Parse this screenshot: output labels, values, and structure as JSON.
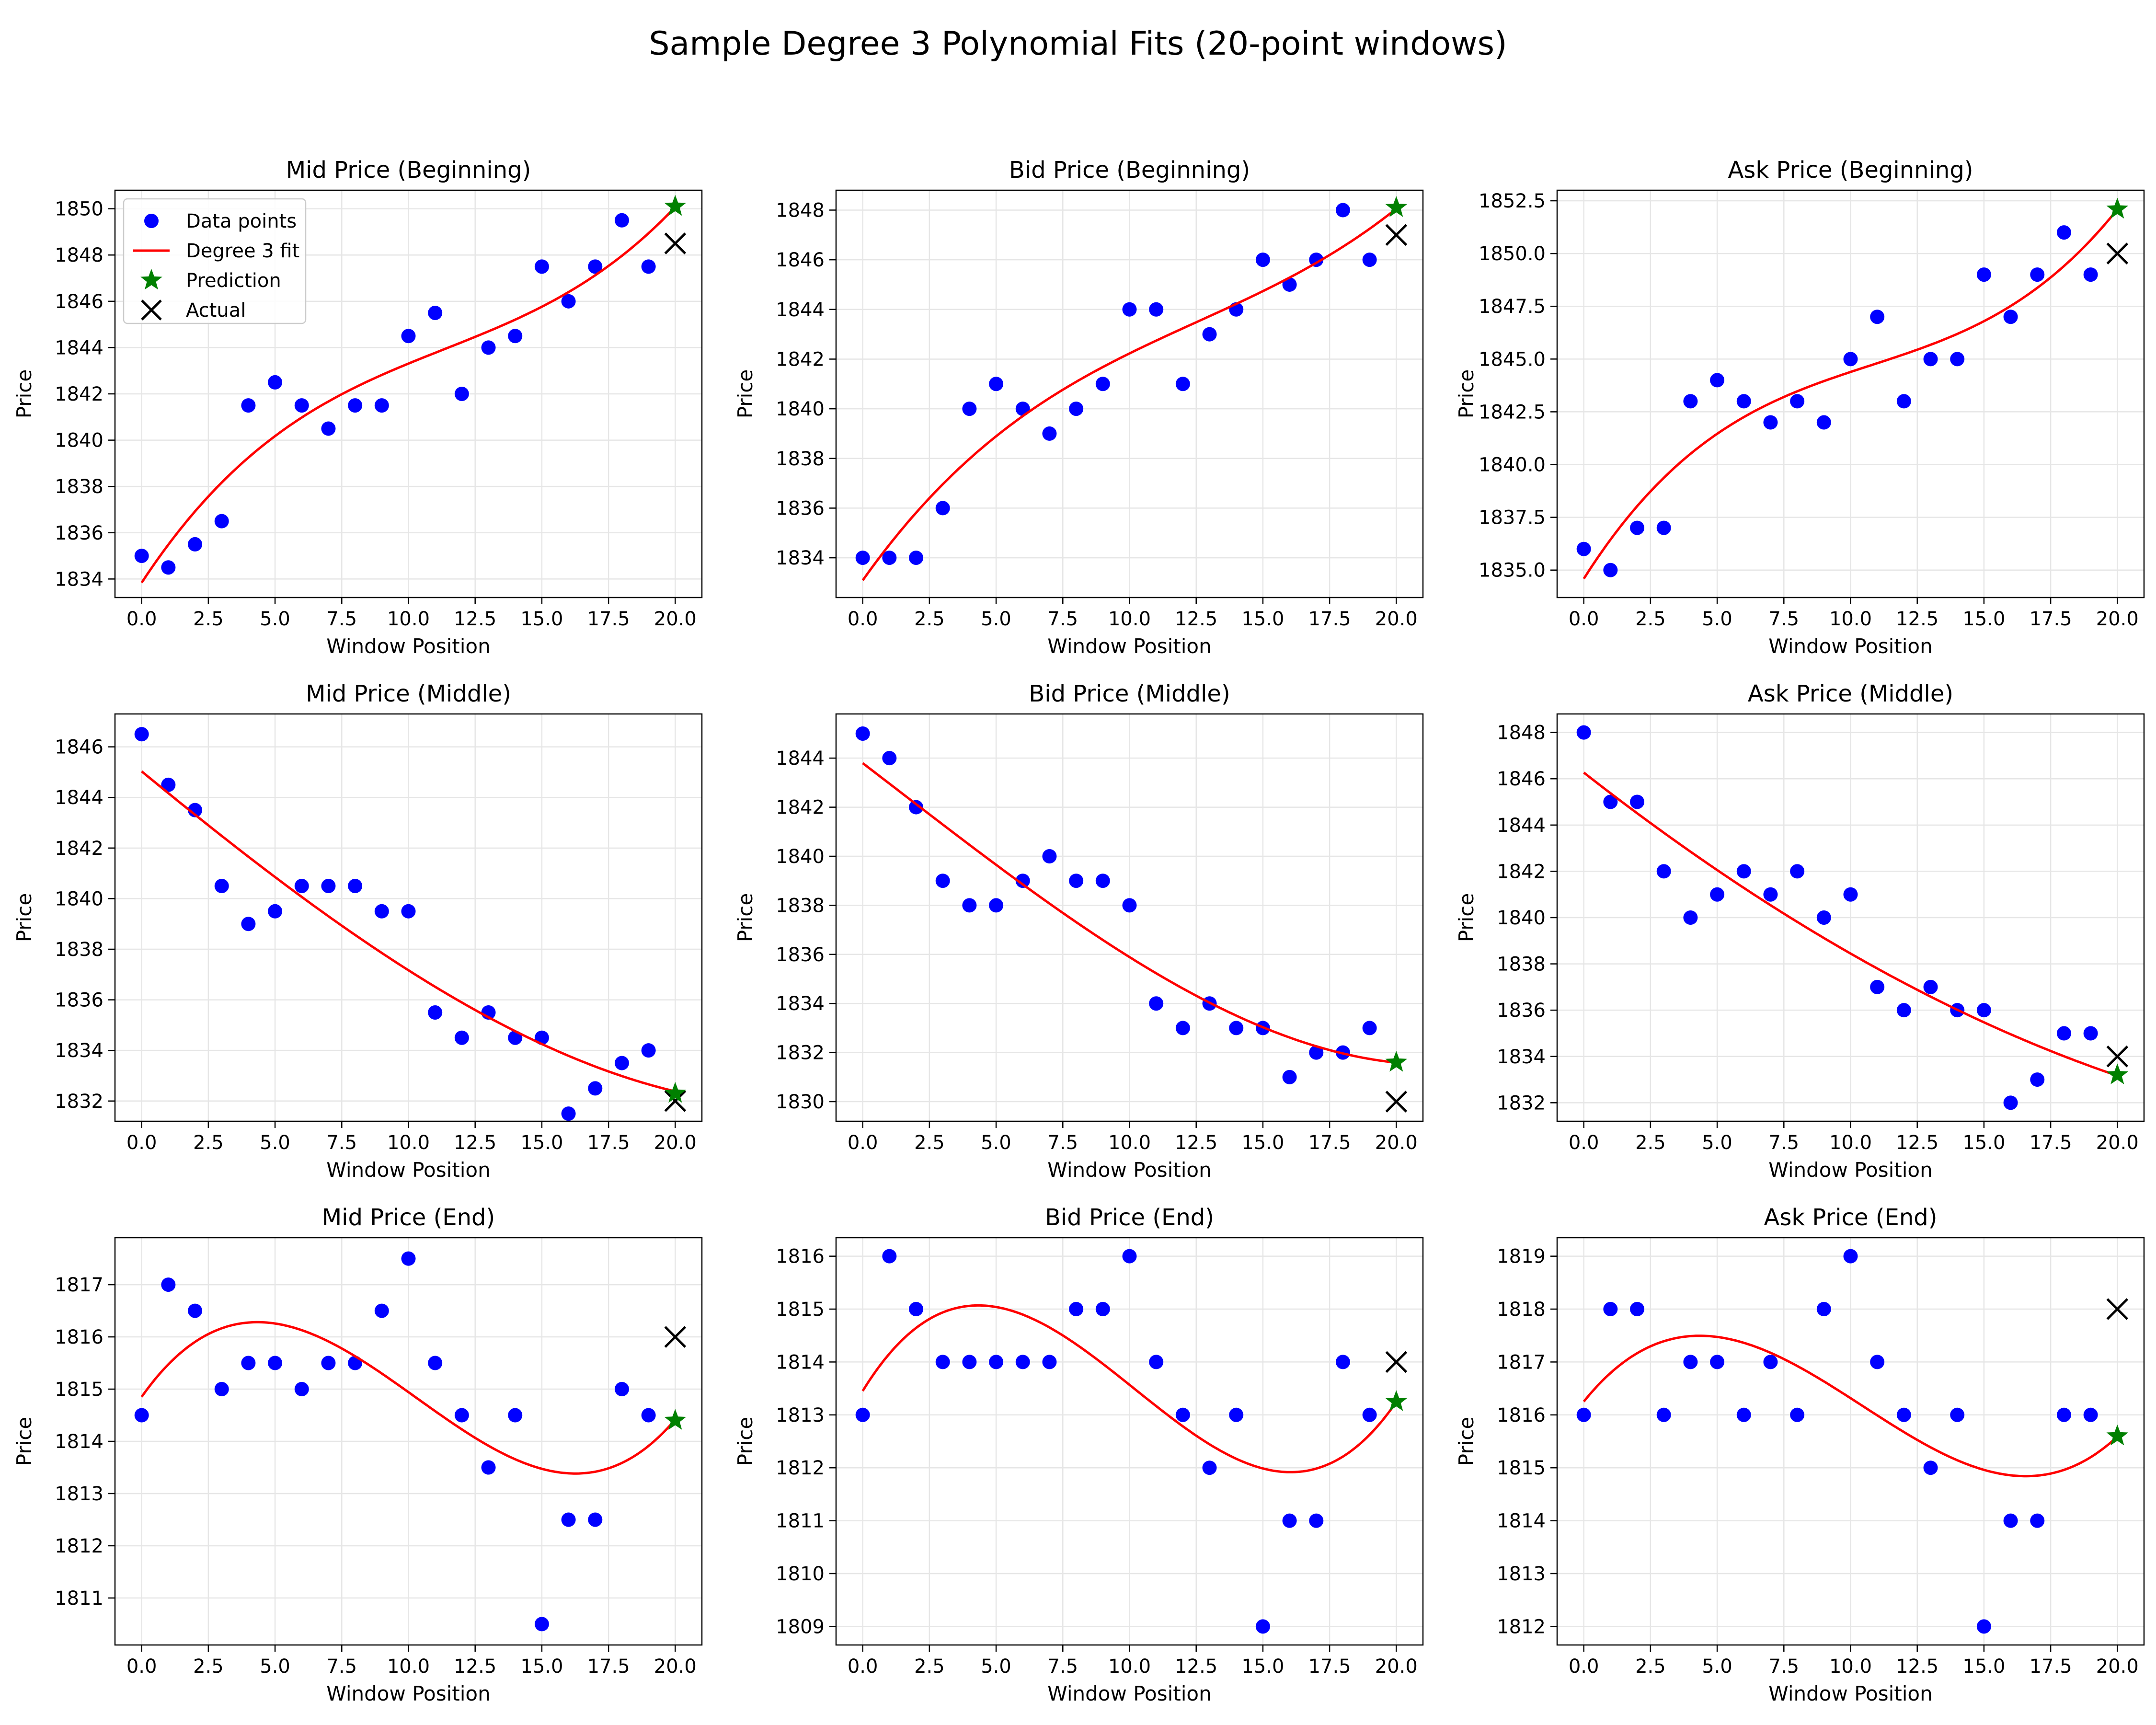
{
  "figure": {
    "title": "Sample Degree 3 Polynomial Fits (20-point windows)"
  },
  "legend_labels": {
    "data": "Data points",
    "fit": "Degree 3 fit",
    "pred": "Prediction",
    "actual": "Actual"
  },
  "colors": {
    "data": "#0000ff",
    "fit": "#ff0000",
    "pred": "#008000",
    "actual": "#000000",
    "grid": "#e6e6e6"
  },
  "chart_data": [
    {
      "type": "scatter",
      "title": "Mid Price (Beginning)",
      "xlabel": "Window Position",
      "ylabel": "Price",
      "xlim": [
        -1,
        21
      ],
      "ylim": [
        1833.2,
        1850.8
      ],
      "xticks": [
        0,
        2.5,
        5,
        7.5,
        10,
        12.5,
        15,
        17.5,
        20
      ],
      "xtick_labels": [
        "0.0",
        "2.5",
        "5.0",
        "7.5",
        "10.0",
        "12.5",
        "15.0",
        "17.5",
        "20.0"
      ],
      "yticks": [
        1834,
        1836,
        1838,
        1840,
        1842,
        1844,
        1846,
        1848,
        1850
      ],
      "ytick_labels": [
        "1834",
        "1836",
        "1838",
        "1840",
        "1842",
        "1844",
        "1846",
        "1848",
        "1850"
      ],
      "x": [
        0,
        1,
        2,
        3,
        4,
        5,
        6,
        7,
        8,
        9,
        10,
        11,
        12,
        13,
        14,
        15,
        16,
        17,
        18,
        19
      ],
      "y": [
        1835,
        1834.5,
        1835.5,
        1836.5,
        1841.5,
        1842.5,
        1841.5,
        1840.5,
        1841.5,
        1841.5,
        1844.5,
        1845.5,
        1842,
        1844,
        1844.5,
        1847.5,
        1846,
        1847.5,
        1849.5,
        1847.5
      ],
      "fit": {
        "degree": 3,
        "x_range": [
          0,
          20
        ]
      },
      "prediction": {
        "x": 20,
        "y": 1850.1
      },
      "actual": {
        "x": 20,
        "y": 1848.5
      },
      "legend": "upper-left",
      "grid": true
    },
    {
      "type": "scatter",
      "title": "Bid Price (Beginning)",
      "xlabel": "Window Position",
      "ylabel": "Price",
      "xlim": [
        -1,
        21
      ],
      "ylim": [
        1832.4,
        1848.8
      ],
      "xticks": [
        0,
        2.5,
        5,
        7.5,
        10,
        12.5,
        15,
        17.5,
        20
      ],
      "xtick_labels": [
        "0.0",
        "2.5",
        "5.0",
        "7.5",
        "10.0",
        "12.5",
        "15.0",
        "17.5",
        "20.0"
      ],
      "yticks": [
        1834,
        1836,
        1838,
        1840,
        1842,
        1844,
        1846,
        1848
      ],
      "ytick_labels": [
        "1834",
        "1836",
        "1838",
        "1840",
        "1842",
        "1844",
        "1846",
        "1848"
      ],
      "x": [
        0,
        1,
        2,
        3,
        4,
        5,
        6,
        7,
        8,
        9,
        10,
        11,
        12,
        13,
        14,
        15,
        16,
        17,
        18,
        19
      ],
      "y": [
        1834,
        1834,
        1834,
        1836,
        1840,
        1841,
        1840,
        1839,
        1840,
        1841,
        1844,
        1844,
        1841,
        1843,
        1844,
        1846,
        1845,
        1846,
        1848,
        1846
      ],
      "fit": {
        "degree": 3,
        "x_range": [
          0,
          20
        ]
      },
      "prediction": {
        "x": 20,
        "y": 1848.1
      },
      "actual": {
        "x": 20,
        "y": 1847
      },
      "grid": true
    },
    {
      "type": "scatter",
      "title": "Ask Price (Beginning)",
      "xlabel": "Window Position",
      "ylabel": "Price",
      "xlim": [
        -1,
        21
      ],
      "ylim": [
        1833.7,
        1853.0
      ],
      "xticks": [
        0,
        2.5,
        5,
        7.5,
        10,
        12.5,
        15,
        17.5,
        20
      ],
      "xtick_labels": [
        "0.0",
        "2.5",
        "5.0",
        "7.5",
        "10.0",
        "12.5",
        "15.0",
        "17.5",
        "20.0"
      ],
      "yticks": [
        1835,
        1837.5,
        1840,
        1842.5,
        1845,
        1847.5,
        1850,
        1852.5
      ],
      "ytick_labels": [
        "1835.0",
        "1837.5",
        "1840.0",
        "1842.5",
        "1845.0",
        "1847.5",
        "1850.0",
        "1852.5"
      ],
      "x": [
        0,
        1,
        2,
        3,
        4,
        5,
        6,
        7,
        8,
        9,
        10,
        11,
        12,
        13,
        14,
        15,
        16,
        17,
        18,
        19
      ],
      "y": [
        1836,
        1835,
        1837,
        1837,
        1843,
        1844,
        1843,
        1842,
        1843,
        1842,
        1845,
        1847,
        1843,
        1845,
        1845,
        1849,
        1847,
        1849,
        1851,
        1849
      ],
      "fit": {
        "degree": 3,
        "x_range": [
          0,
          20
        ]
      },
      "prediction": {
        "x": 20,
        "y": 1852.1
      },
      "actual": {
        "x": 20,
        "y": 1850
      },
      "grid": true
    },
    {
      "type": "scatter",
      "title": "Mid Price (Middle)",
      "xlabel": "Window Position",
      "ylabel": "Price",
      "xlim": [
        -1,
        21
      ],
      "ylim": [
        1831.2,
        1847.3
      ],
      "xticks": [
        0,
        2.5,
        5,
        7.5,
        10,
        12.5,
        15,
        17.5,
        20
      ],
      "xtick_labels": [
        "0.0",
        "2.5",
        "5.0",
        "7.5",
        "10.0",
        "12.5",
        "15.0",
        "17.5",
        "20.0"
      ],
      "yticks": [
        1832,
        1834,
        1836,
        1838,
        1840,
        1842,
        1844,
        1846
      ],
      "ytick_labels": [
        "1832",
        "1834",
        "1836",
        "1838",
        "1840",
        "1842",
        "1844",
        "1846"
      ],
      "x": [
        0,
        1,
        2,
        3,
        4,
        5,
        6,
        7,
        8,
        9,
        10,
        11,
        12,
        13,
        14,
        15,
        16,
        17,
        18,
        19
      ],
      "y": [
        1846.5,
        1844.5,
        1843.5,
        1840.5,
        1839,
        1839.5,
        1840.5,
        1840.5,
        1840.5,
        1839.5,
        1839.5,
        1835.5,
        1834.5,
        1835.5,
        1834.5,
        1834.5,
        1831.5,
        1832.5,
        1833.5,
        1834
      ],
      "fit": {
        "degree": 3,
        "x_range": [
          0,
          20
        ]
      },
      "prediction": {
        "x": 20,
        "y": 1832.3
      },
      "actual": {
        "x": 20,
        "y": 1832
      },
      "grid": true
    },
    {
      "type": "scatter",
      "title": "Bid Price (Middle)",
      "xlabel": "Window Position",
      "ylabel": "Price",
      "xlim": [
        -1,
        21
      ],
      "ylim": [
        1829.2,
        1845.8
      ],
      "xticks": [
        0,
        2.5,
        5,
        7.5,
        10,
        12.5,
        15,
        17.5,
        20
      ],
      "xtick_labels": [
        "0.0",
        "2.5",
        "5.0",
        "7.5",
        "10.0",
        "12.5",
        "15.0",
        "17.5",
        "20.0"
      ],
      "yticks": [
        1830,
        1832,
        1834,
        1836,
        1838,
        1840,
        1842,
        1844
      ],
      "ytick_labels": [
        "1830",
        "1832",
        "1834",
        "1836",
        "1838",
        "1840",
        "1842",
        "1844"
      ],
      "x": [
        0,
        1,
        2,
        3,
        4,
        5,
        6,
        7,
        8,
        9,
        10,
        11,
        12,
        13,
        14,
        15,
        16,
        17,
        18,
        19
      ],
      "y": [
        1845,
        1844,
        1842,
        1839,
        1838,
        1838,
        1839,
        1840,
        1839,
        1839,
        1838,
        1834,
        1833,
        1834,
        1833,
        1833,
        1831,
        1832,
        1832,
        1833
      ],
      "fit": {
        "degree": 3,
        "x_range": [
          0,
          20
        ]
      },
      "prediction": {
        "x": 20,
        "y": 1831.6
      },
      "actual": {
        "x": 20,
        "y": 1830
      },
      "grid": true
    },
    {
      "type": "scatter",
      "title": "Ask Price (Middle)",
      "xlabel": "Window Position",
      "ylabel": "Price",
      "xlim": [
        -1,
        21
      ],
      "ylim": [
        1831.2,
        1848.8
      ],
      "xticks": [
        0,
        2.5,
        5,
        7.5,
        10,
        12.5,
        15,
        17.5,
        20
      ],
      "xtick_labels": [
        "0.0",
        "2.5",
        "5.0",
        "7.5",
        "10.0",
        "12.5",
        "15.0",
        "17.5",
        "20.0"
      ],
      "yticks": [
        1832,
        1834,
        1836,
        1838,
        1840,
        1842,
        1844,
        1846,
        1848
      ],
      "ytick_labels": [
        "1832",
        "1834",
        "1836",
        "1838",
        "1840",
        "1842",
        "1844",
        "1846",
        "1848"
      ],
      "x": [
        0,
        1,
        2,
        3,
        4,
        5,
        6,
        7,
        8,
        9,
        10,
        11,
        12,
        13,
        14,
        15,
        16,
        17,
        18,
        19
      ],
      "y": [
        1848,
        1845,
        1845,
        1842,
        1840,
        1841,
        1842,
        1841,
        1842,
        1840,
        1841,
        1837,
        1836,
        1837,
        1836,
        1836,
        1832,
        1833,
        1835,
        1835
      ],
      "fit": {
        "degree": 3,
        "x_range": [
          0,
          20
        ]
      },
      "prediction": {
        "x": 20,
        "y": 1833.2
      },
      "actual": {
        "x": 20,
        "y": 1834
      },
      "grid": true
    },
    {
      "type": "scatter",
      "title": "Mid Price (End)",
      "xlabel": "Window Position",
      "ylabel": "Price",
      "xlim": [
        -1,
        21
      ],
      "ylim": [
        1810.1,
        1817.9
      ],
      "xticks": [
        0,
        2.5,
        5,
        7.5,
        10,
        12.5,
        15,
        17.5,
        20
      ],
      "xtick_labels": [
        "0.0",
        "2.5",
        "5.0",
        "7.5",
        "10.0",
        "12.5",
        "15.0",
        "17.5",
        "20.0"
      ],
      "yticks": [
        1811,
        1812,
        1813,
        1814,
        1815,
        1816,
        1817
      ],
      "ytick_labels": [
        "1811",
        "1812",
        "1813",
        "1814",
        "1815",
        "1816",
        "1817"
      ],
      "x": [
        0,
        1,
        2,
        3,
        4,
        5,
        6,
        7,
        8,
        9,
        10,
        11,
        12,
        13,
        14,
        15,
        16,
        17,
        18,
        19
      ],
      "y": [
        1814.5,
        1817,
        1816.5,
        1815,
        1815.5,
        1815.5,
        1815,
        1815.5,
        1815.5,
        1816.5,
        1817.5,
        1815.5,
        1814.5,
        1813.5,
        1814.5,
        1810.5,
        1812.5,
        1812.5,
        1815,
        1814.5
      ],
      "fit": {
        "degree": 3,
        "x_range": [
          0,
          20
        ]
      },
      "prediction": {
        "x": 20,
        "y": 1814.4
      },
      "actual": {
        "x": 20,
        "y": 1816
      },
      "grid": true
    },
    {
      "type": "scatter",
      "title": "Bid Price (End)",
      "xlabel": "Window Position",
      "ylabel": "Price",
      "xlim": [
        -1,
        21
      ],
      "ylim": [
        1808.65,
        1816.35
      ],
      "xticks": [
        0,
        2.5,
        5,
        7.5,
        10,
        12.5,
        15,
        17.5,
        20
      ],
      "xtick_labels": [
        "0.0",
        "2.5",
        "5.0",
        "7.5",
        "10.0",
        "12.5",
        "15.0",
        "17.5",
        "20.0"
      ],
      "yticks": [
        1809,
        1810,
        1811,
        1812,
        1813,
        1814,
        1815,
        1816
      ],
      "ytick_labels": [
        "1809",
        "1810",
        "1811",
        "1812",
        "1813",
        "1814",
        "1815",
        "1816"
      ],
      "x": [
        0,
        1,
        2,
        3,
        4,
        5,
        6,
        7,
        8,
        9,
        10,
        11,
        12,
        13,
        14,
        15,
        16,
        17,
        18,
        19
      ],
      "y": [
        1813,
        1816,
        1815,
        1814,
        1814,
        1814,
        1814,
        1814,
        1815,
        1815,
        1816,
        1814,
        1813,
        1812,
        1813,
        1809,
        1811,
        1811,
        1814,
        1813
      ],
      "fit": {
        "degree": 3,
        "x_range": [
          0,
          20
        ]
      },
      "prediction": {
        "x": 20,
        "y": 1813.25
      },
      "actual": {
        "x": 20,
        "y": 1814
      },
      "grid": true
    },
    {
      "type": "scatter",
      "title": "Ask Price (End)",
      "xlabel": "Window Position",
      "ylabel": "Price",
      "xlim": [
        -1,
        21
      ],
      "ylim": [
        1811.65,
        1819.35
      ],
      "xticks": [
        0,
        2.5,
        5,
        7.5,
        10,
        12.5,
        15,
        17.5,
        20
      ],
      "xtick_labels": [
        "0.0",
        "2.5",
        "5.0",
        "7.5",
        "10.0",
        "12.5",
        "15.0",
        "17.5",
        "20.0"
      ],
      "yticks": [
        1812,
        1813,
        1814,
        1815,
        1816,
        1817,
        1818,
        1819
      ],
      "ytick_labels": [
        "1812",
        "1813",
        "1814",
        "1815",
        "1816",
        "1817",
        "1818",
        "1819"
      ],
      "x": [
        0,
        1,
        2,
        3,
        4,
        5,
        6,
        7,
        8,
        9,
        10,
        11,
        12,
        13,
        14,
        15,
        16,
        17,
        18,
        19
      ],
      "y": [
        1816,
        1818,
        1818,
        1816,
        1817,
        1817,
        1816,
        1817,
        1816,
        1818,
        1819,
        1817,
        1816,
        1815,
        1816,
        1812,
        1814,
        1814,
        1816,
        1816
      ],
      "fit": {
        "degree": 3,
        "x_range": [
          0,
          20
        ]
      },
      "prediction": {
        "x": 20,
        "y": 1815.6
      },
      "actual": {
        "x": 20,
        "y": 1818
      },
      "grid": true
    }
  ]
}
